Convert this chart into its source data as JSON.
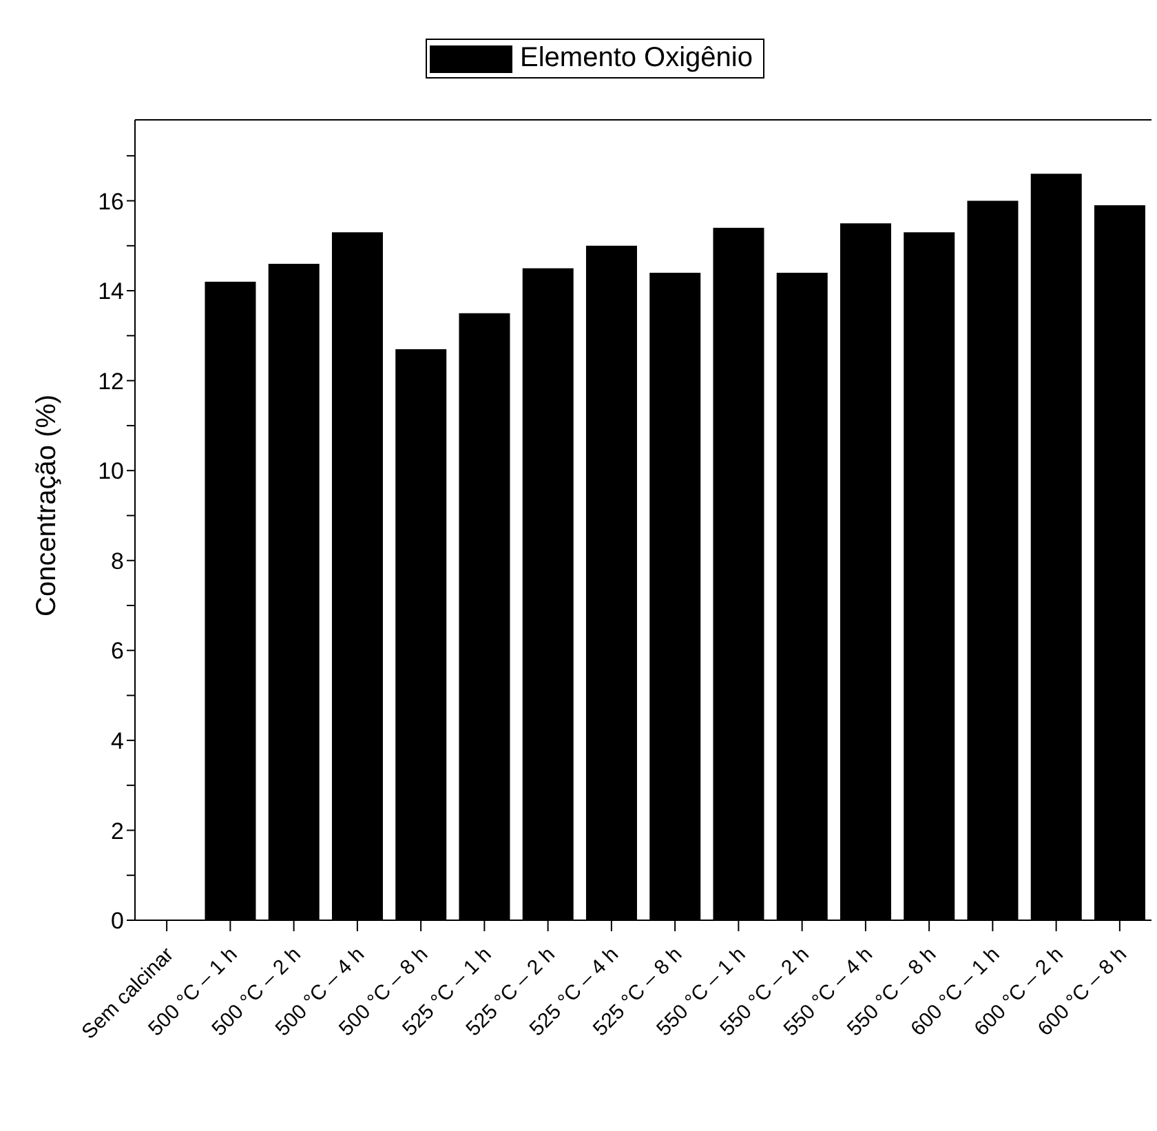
{
  "chart_data": {
    "type": "bar",
    "ylabel": "Concentração (%)",
    "categories": [
      "Sem calcinar",
      "500 °C – 1 h",
      "500 °C – 2 h",
      "500 °C – 4 h",
      "500 °C – 8 h",
      "525 °C – 1 h",
      "525 °C – 2 h",
      "525 °C – 4 h",
      "525 °C – 8 h",
      "550 °C – 1 h",
      "550 °C – 2 h",
      "550 °C – 4 h",
      "550 °C – 8 h",
      "600 °C – 1 h",
      "600 °C – 2 h",
      "600 °C – 8 h"
    ],
    "series": [
      {
        "name": "Elemento Oxigênio",
        "color": "#000000",
        "values": [
          null,
          14.2,
          14.6,
          15.3,
          12.7,
          13.5,
          14.5,
          15.0,
          14.4,
          15.4,
          14.4,
          15.5,
          15.3,
          16.0,
          16.6,
          15.9
        ]
      }
    ],
    "ylim": [
      0,
      17.8
    ],
    "yticks": [
      0,
      {
        "value": 1,
        "label": null
      },
      2,
      {
        "value": 3,
        "label": null
      },
      4,
      {
        "value": 5,
        "label": null
      },
      6,
      {
        "value": 7,
        "label": null
      },
      8,
      {
        "value": 9,
        "label": null
      },
      10,
      {
        "value": 11,
        "label": null
      },
      12,
      {
        "value": 13,
        "label": null
      },
      14,
      {
        "value": 15,
        "label": null
      },
      16,
      {
        "value": 17,
        "label": null
      }
    ],
    "legend": "top"
  }
}
